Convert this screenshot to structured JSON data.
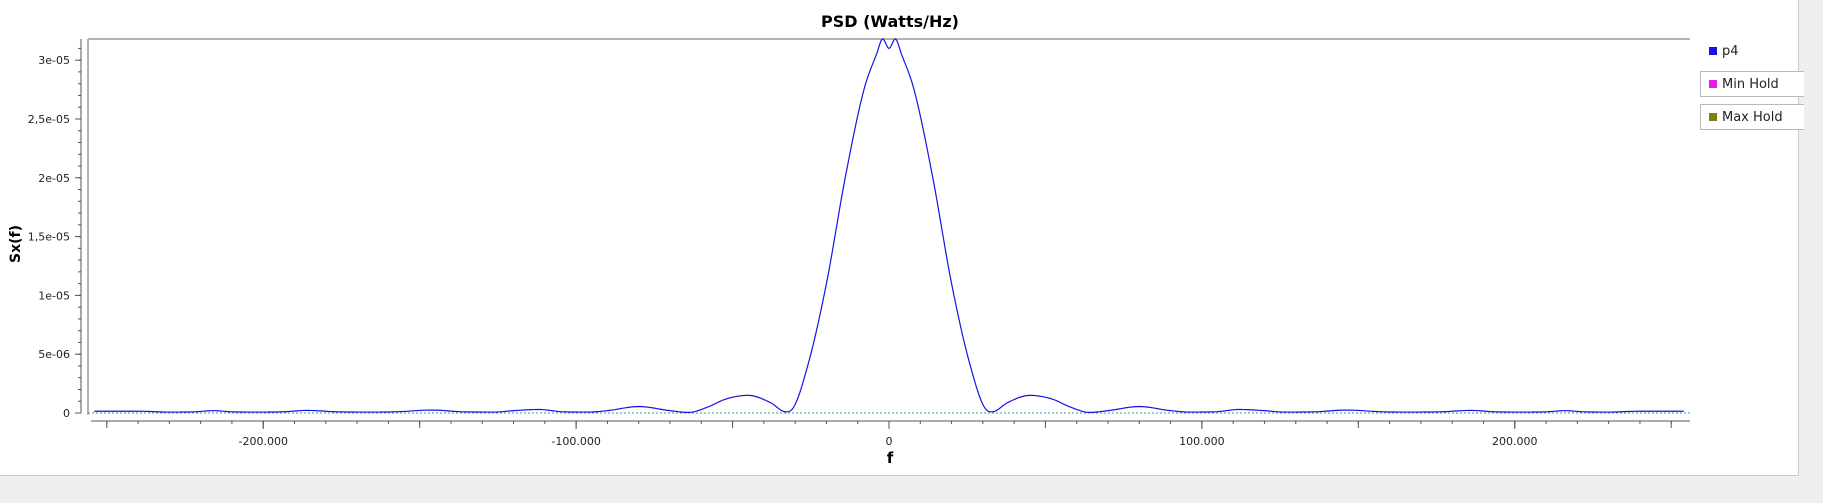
{
  "chart_data": {
    "type": "line",
    "title": "PSD (Watts/Hz)",
    "xlabel": "f",
    "ylabel": "Sx(f)",
    "xlim": [
      -256000,
      256000
    ],
    "ylim": [
      0,
      3.18e-05
    ],
    "x_ticks": [
      {
        "value": -200000,
        "label": "-200.000"
      },
      {
        "value": -100000,
        "label": "-100.000"
      },
      {
        "value": 0,
        "label": "0"
      },
      {
        "value": 100000,
        "label": "100.000"
      },
      {
        "value": 200000,
        "label": "200.000"
      }
    ],
    "y_ticks": [
      {
        "value": 0,
        "label": "0"
      },
      {
        "value": 5e-06,
        "label": "5e-06"
      },
      {
        "value": 1e-05,
        "label": "1e-05"
      },
      {
        "value": 1.5e-05,
        "label": "1,5e-05"
      },
      {
        "value": 2e-05,
        "label": "2e-05"
      },
      {
        "value": 2.5e-05,
        "label": "2,5e-05"
      },
      {
        "value": 3e-05,
        "label": "3e-05"
      }
    ],
    "grid": false,
    "legend_position": "right",
    "series": [
      {
        "name": "p4",
        "color": "#1414e6",
        "x": [
          -254000,
          -240000,
          -230000,
          -222000,
          -216000,
          -210000,
          -202000,
          -194000,
          -186000,
          -176000,
          -166000,
          -158000,
          -146000,
          -136000,
          -126000,
          -120000,
          -112000,
          -104000,
          -96000,
          -90000,
          -80000,
          -70000,
          -64000,
          -58000,
          -52000,
          -45000,
          -38000,
          -33000,
          -31000,
          -26000,
          -20000,
          -14000,
          -8000,
          -4000,
          -2000,
          0,
          2000,
          4000,
          8000,
          14000,
          20000,
          26000,
          31000,
          33000,
          38000,
          45000,
          52000,
          58000,
          64000,
          70000,
          80000,
          90000,
          96000,
          104000,
          112000,
          120000,
          126000,
          136000,
          146000,
          158000,
          166000,
          176000,
          186000,
          194000,
          202000,
          210000,
          216000,
          222000,
          230000,
          240000,
          254000
        ],
        "y": [
          1.5e-07,
          1.5e-07,
          8e-08,
          1e-07,
          2e-07,
          1e-07,
          8e-08,
          1e-07,
          2.2e-07,
          1e-07,
          8e-08,
          1e-07,
          2.5e-07,
          1e-07,
          8e-08,
          2e-07,
          3e-07,
          1e-07,
          8e-08,
          2e-07,
          5.5e-07,
          2e-07,
          5e-08,
          5e-07,
          1.2e-06,
          1.5e-06,
          9e-07,
          1e-07,
          3e-07,
          4e-06,
          1.1e-05,
          2e-05,
          2.75e-05,
          3.05e-05,
          3.18e-05,
          3.1e-05,
          3.18e-05,
          3.05e-05,
          2.75e-05,
          2e-05,
          1.1e-05,
          4e-06,
          3e-07,
          1e-07,
          9e-07,
          1.5e-06,
          1.2e-06,
          5e-07,
          5e-08,
          2e-07,
          5.5e-07,
          2e-07,
          8e-08,
          1e-07,
          3e-07,
          2e-07,
          8e-08,
          1e-07,
          2.5e-07,
          1e-07,
          8e-08,
          1e-07,
          2.2e-07,
          1e-07,
          8e-08,
          1e-07,
          2e-07,
          1e-07,
          8e-08,
          1.5e-07,
          1.5e-07
        ]
      },
      {
        "name": "Min Hold",
        "color": "#e619e6",
        "x": [
          -256000,
          256000
        ],
        "y": [
          0,
          0
        ]
      },
      {
        "name": "Max Hold",
        "color": "#7f7f14",
        "x": [
          -256000,
          256000
        ],
        "y": [
          0,
          0
        ]
      }
    ]
  }
}
